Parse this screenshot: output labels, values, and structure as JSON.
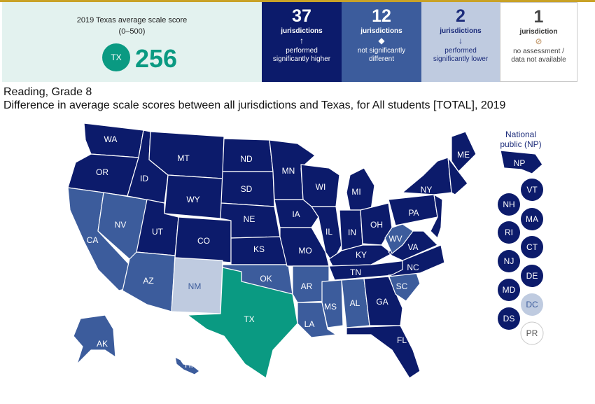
{
  "summary": {
    "title": "2019 Texas average scale score",
    "range": "(0–500)",
    "state_abbr": "TX",
    "score": "256"
  },
  "categories": [
    {
      "count": "37",
      "unit": "jurisdictions",
      "symbol": "↑",
      "desc1": "performed",
      "desc2": "significantly higher",
      "color": "#0c1b6b"
    },
    {
      "count": "12",
      "unit": "jurisdictions",
      "symbol": "◆",
      "desc1": "not significantly",
      "desc2": "different",
      "color": "#3c5c9c"
    },
    {
      "count": "2",
      "unit": "jurisdictions",
      "symbol": "↓",
      "desc1": "performed",
      "desc2": "significantly lower",
      "color": "#bfcbe0"
    },
    {
      "count": "1",
      "unit": "jurisdiction",
      "symbol": "⊘",
      "desc1": "no assessment /",
      "desc2": "data not available",
      "color": "#ffffff"
    }
  ],
  "caption": {
    "line1": "Reading, Grade 8",
    "line2": "Difference in average scale scores between all jurisdictions and Texas, for All students [TOTAL], 2019"
  },
  "colors": {
    "higher": "#0c1b6b",
    "same": "#3c5c9c",
    "lower": "#bfcbe0",
    "focal": "#0a9a82",
    "na": "#ffffff"
  },
  "map": {
    "np_title_1": "National",
    "np_title_2": "public (NP)",
    "states": {
      "WA": "higher",
      "OR": "higher",
      "ID": "higher",
      "MT": "higher",
      "WY": "higher",
      "ND": "higher",
      "SD": "higher",
      "NE": "higher",
      "KS": "higher",
      "CO": "higher",
      "UT": "higher",
      "MN": "higher",
      "IA": "higher",
      "MO": "higher",
      "WI": "higher",
      "IL": "higher",
      "MI": "higher",
      "IN": "higher",
      "OH": "higher",
      "KY": "higher",
      "TN": "higher",
      "GA": "higher",
      "FL": "higher",
      "NC": "higher",
      "VA": "higher",
      "PA": "higher",
      "NY": "higher",
      "ME": "higher",
      "NP": "higher",
      "VT": "higher",
      "NH": "higher",
      "MA": "higher",
      "RI": "higher",
      "CT": "higher",
      "NJ": "higher",
      "DE": "higher",
      "MD": "higher",
      "DS": "higher",
      "CA": "same",
      "NV": "same",
      "AZ": "same",
      "OK": "same",
      "AR": "same",
      "LA": "same",
      "MS": "same",
      "AL": "same",
      "SC": "same",
      "WV": "same",
      "AK": "same",
      "HI": "same",
      "NM": "lower",
      "DC": "lower",
      "TX": "focal",
      "PR": "na"
    }
  }
}
